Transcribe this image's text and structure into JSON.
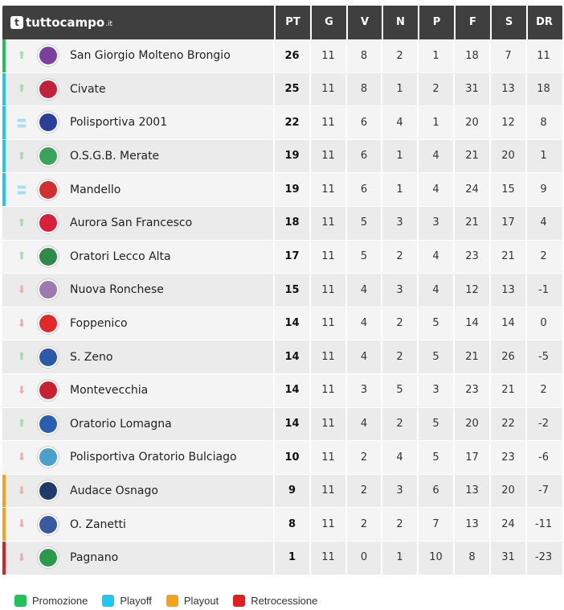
{
  "brand": {
    "name": "tuttocampo",
    "tld": ".it",
    "icon": "t"
  },
  "columns": [
    "PT",
    "G",
    "V",
    "N",
    "P",
    "F",
    "S",
    "DR"
  ],
  "zone_colors": {
    "promozione": "#22c25a",
    "playoff": "#1ec8f0",
    "playout": "#f5a21b",
    "retrocessione": "#e02020",
    "none": "transparent"
  },
  "trend_colors": {
    "up": "#9fdcaa",
    "down": "#f2a9a9",
    "same": "#a8dff0"
  },
  "rows": [
    {
      "zone": "promozione",
      "trend": "up",
      "logo_color": "#7b3fa0",
      "team": "San Giorgio Molteno Brongio",
      "pt": "26",
      "g": "11",
      "v": "8",
      "n": "2",
      "p": "1",
      "f": "18",
      "s": "7",
      "dr": "11"
    },
    {
      "zone": "playoff",
      "trend": "up",
      "logo_color": "#c0203a",
      "team": "Civate",
      "pt": "25",
      "g": "11",
      "v": "8",
      "n": "1",
      "p": "2",
      "f": "31",
      "s": "13",
      "dr": "18"
    },
    {
      "zone": "playoff",
      "trend": "same",
      "logo_color": "#2a3f9a",
      "team": "Polisportiva 2001",
      "pt": "22",
      "g": "11",
      "v": "6",
      "n": "4",
      "p": "1",
      "f": "20",
      "s": "12",
      "dr": "8"
    },
    {
      "zone": "playoff",
      "trend": "up",
      "logo_color": "#3aa55a",
      "team": "O.S.G.B. Merate",
      "pt": "19",
      "g": "11",
      "v": "6",
      "n": "1",
      "p": "4",
      "f": "21",
      "s": "20",
      "dr": "1"
    },
    {
      "zone": "playoff",
      "trend": "same",
      "logo_color": "#d03030",
      "team": "Mandello",
      "pt": "19",
      "g": "11",
      "v": "6",
      "n": "1",
      "p": "4",
      "f": "24",
      "s": "15",
      "dr": "9"
    },
    {
      "zone": "none",
      "trend": "up",
      "logo_color": "#d8203a",
      "team": "Aurora San Francesco",
      "pt": "18",
      "g": "11",
      "v": "5",
      "n": "3",
      "p": "3",
      "f": "21",
      "s": "17",
      "dr": "4"
    },
    {
      "zone": "none",
      "trend": "up",
      "logo_color": "#2f8a4a",
      "team": "Oratori Lecco Alta",
      "pt": "17",
      "g": "11",
      "v": "5",
      "n": "2",
      "p": "4",
      "f": "23",
      "s": "21",
      "dr": "2"
    },
    {
      "zone": "none",
      "trend": "down",
      "logo_color": "#9a7ab0",
      "team": "Nuova Ronchese",
      "pt": "15",
      "g": "11",
      "v": "4",
      "n": "3",
      "p": "4",
      "f": "12",
      "s": "13",
      "dr": "-1"
    },
    {
      "zone": "none",
      "trend": "down",
      "logo_color": "#e02a2a",
      "team": "Foppenico",
      "pt": "14",
      "g": "11",
      "v": "4",
      "n": "2",
      "p": "5",
      "f": "14",
      "s": "14",
      "dr": "0"
    },
    {
      "zone": "none",
      "trend": "up",
      "logo_color": "#2c5aa8",
      "team": "S. Zeno",
      "pt": "14",
      "g": "11",
      "v": "4",
      "n": "2",
      "p": "5",
      "f": "21",
      "s": "26",
      "dr": "-5"
    },
    {
      "zone": "none",
      "trend": "down",
      "logo_color": "#c82030",
      "team": "Montevecchia",
      "pt": "14",
      "g": "11",
      "v": "3",
      "n": "5",
      "p": "3",
      "f": "23",
      "s": "21",
      "dr": "2"
    },
    {
      "zone": "none",
      "trend": "up",
      "logo_color": "#2a5fb0",
      "team": "Oratorio Lomagna",
      "pt": "14",
      "g": "11",
      "v": "4",
      "n": "2",
      "p": "5",
      "f": "20",
      "s": "22",
      "dr": "-2"
    },
    {
      "zone": "none",
      "trend": "down",
      "logo_color": "#4aa0c8",
      "team": "Polisportiva Oratorio Bulciago",
      "pt": "10",
      "g": "11",
      "v": "2",
      "n": "4",
      "p": "5",
      "f": "17",
      "s": "23",
      "dr": "-6"
    },
    {
      "zone": "playout",
      "trend": "down",
      "logo_color": "#1f3a6a",
      "team": "Audace Osnago",
      "pt": "9",
      "g": "11",
      "v": "2",
      "n": "3",
      "p": "6",
      "f": "13",
      "s": "20",
      "dr": "-7"
    },
    {
      "zone": "playout",
      "trend": "down",
      "logo_color": "#3a5aa0",
      "team": "O. Zanetti",
      "pt": "8",
      "g": "11",
      "v": "2",
      "n": "2",
      "p": "7",
      "f": "13",
      "s": "24",
      "dr": "-11"
    },
    {
      "zone": "retrocessione",
      "trend": "down",
      "logo_color": "#2a9a4a",
      "team": "Pagnano",
      "pt": "1",
      "g": "11",
      "v": "0",
      "n": "1",
      "p": "10",
      "f": "8",
      "s": "31",
      "dr": "-23"
    }
  ],
  "legend": [
    {
      "key": "promozione",
      "label": "Promozione"
    },
    {
      "key": "playoff",
      "label": "Playoff"
    },
    {
      "key": "playout",
      "label": "Playout"
    },
    {
      "key": "retrocessione",
      "label": "Retrocessione"
    }
  ]
}
